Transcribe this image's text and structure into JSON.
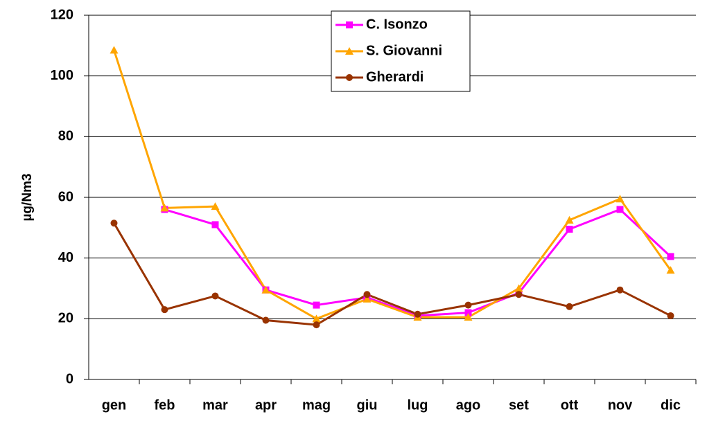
{
  "chart_data": {
    "type": "line",
    "ylabel": "µg/Nm3",
    "categories": [
      "gen",
      "feb",
      "mar",
      "apr",
      "mag",
      "giu",
      "lug",
      "ago",
      "set",
      "ott",
      "nov",
      "dic"
    ],
    "series": [
      {
        "name": "C. Isonzo",
        "color": "#ff00ff",
        "marker": "square",
        "values": [
          null,
          56,
          51,
          29.5,
          24.5,
          27,
          21,
          22,
          28.5,
          49.5,
          56,
          40.5
        ]
      },
      {
        "name": "S. Giovanni",
        "color": "#ffa500",
        "marker": "triangle",
        "values": [
          108.5,
          56.5,
          57,
          29.5,
          20,
          26.5,
          20.5,
          20.5,
          30,
          52.5,
          59.5,
          36
        ]
      },
      {
        "name": "Gherardi",
        "color": "#993300",
        "marker": "circle",
        "values": [
          51.5,
          23,
          27.5,
          19.5,
          18,
          28,
          21.5,
          24.5,
          28,
          24,
          29.5,
          21
        ]
      }
    ],
    "ylim": [
      0,
      120
    ],
    "yticks": [
      0,
      20,
      40,
      60,
      80,
      100,
      120
    ],
    "grid": true,
    "legend": "upper center"
  }
}
